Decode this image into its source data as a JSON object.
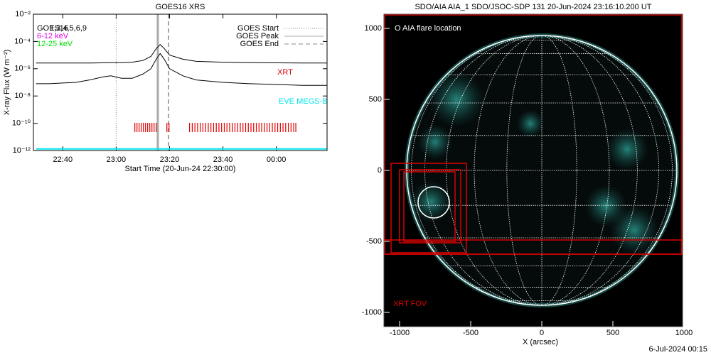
{
  "chart_data": [
    {
      "type": "log_line",
      "title": "GOES16 XRS",
      "xlabel": "Start Time (20-Jun-24 22:30:00)",
      "ylabel": "X-ray Flux (W m⁻²)",
      "xlim": [
        -1,
        109
      ],
      "xticks": [
        {
          "value": 10,
          "label": "22:40"
        },
        {
          "value": 30,
          "label": "23:00"
        },
        {
          "value": 50,
          "label": "23:20"
        },
        {
          "value": 70,
          "label": "23:40"
        },
        {
          "value": 90,
          "label": "00:00"
        }
      ],
      "ylim": [
        1e-12,
        0.01
      ],
      "yticks": [
        {
          "value": 0.01,
          "label": "10⁻²"
        },
        {
          "value": 0.0001,
          "label": "10⁻⁴"
        },
        {
          "value": 1e-06,
          "label": "10⁻⁶"
        },
        {
          "value": 1e-08,
          "label": "10⁻⁸"
        },
        {
          "value": 1e-10,
          "label": "10⁻¹⁰"
        },
        {
          "value": 1e-12,
          "label": "10⁻¹²"
        }
      ],
      "log_scale": true,
      "x": [
        0,
        5,
        10,
        15,
        20,
        25,
        28,
        32,
        36,
        40,
        43,
        45,
        46.5,
        48,
        50,
        55,
        60,
        70,
        80,
        90,
        100,
        109
      ],
      "series": [
        {
          "color": "#000000",
          "values": [
            2.6e-06,
            2.6e-06,
            2.6e-06,
            2.6e-06,
            2.6e-06,
            2.7e-06,
            2.8e-06,
            2.8e-06,
            3e-06,
            4e-06,
            8e-06,
            3e-05,
            6e-05,
            3e-05,
            1e-05,
            5e-06,
            3.5e-06,
            3e-06,
            2.8e-06,
            2.7e-06,
            2.6e-06,
            2.6e-06
          ]
        },
        {
          "color": "#000000",
          "values": [
            8e-08,
            8e-08,
            9e-08,
            1e-07,
            1.5e-07,
            2.5e-07,
            3e-07,
            2e-07,
            2e-07,
            4e-07,
            1e-06,
            5e-06,
            1.3e-05,
            5e-06,
            1e-06,
            3e-07,
            1.5e-07,
            1e-07,
            8e-08,
            7e-08,
            6e-08,
            6e-08
          ]
        },
        {
          "color": "#00e5ee",
          "values": [
            1.3e-12,
            1.3e-12,
            1.3e-12,
            1.3e-12,
            1.3e-12,
            1.3e-12,
            1.3e-12,
            1.3e-12,
            1.3e-12,
            1.3e-12,
            1.3e-12,
            1.3e-12,
            1.3e-12,
            1.3e-12,
            1.3e-12,
            1.3e-12,
            1.3e-12,
            1.3e-12,
            1.3e-12,
            1.3e-12,
            1.3e-12,
            1.3e-12
          ]
        }
      ],
      "channel_labels": [
        {
          "text": "GOES16",
          "color": "#000000"
        },
        {
          "text": "1,3,4,5,6,9",
          "color": "#000000"
        },
        {
          "text": "6-12 keV",
          "color": "#e000e0"
        },
        {
          "text": "12-25 keV",
          "color": "#00dd00"
        }
      ],
      "xrt_label": "XRT",
      "eve_label": "EVE MEGS-B",
      "goes_start": {
        "label": "GOES Start",
        "value": 30
      },
      "goes_peak": {
        "label": "GOES Peak",
        "value": 45.6
      },
      "goes_end": {
        "label": "GOES End",
        "value": 49.6
      },
      "xrt_color": "#dd0000",
      "xrt_times": [
        37,
        37.8,
        38.6,
        39.4,
        40.2,
        41,
        41.8,
        42.6,
        43.4,
        44.2,
        45,
        49,
        49.8,
        57.5,
        58.5,
        59.5,
        60.5,
        61.5,
        62.5,
        63.5,
        64.5,
        65.5,
        66.5,
        67.5,
        68.5,
        69.5,
        70.5,
        71.5,
        72.5,
        73.5,
        74.5,
        75.5,
        76.5,
        77.5,
        78.5,
        79.5,
        80.5,
        81.5,
        82.5,
        83.5,
        84.5,
        85.5,
        86.5,
        87.5,
        88.5,
        89.5,
        90.5,
        91.5,
        92.5,
        93.5,
        94.5,
        95.5,
        96.5,
        97.3
      ]
    },
    {
      "type": "solar_image",
      "title": "SDO/AIA AIA_1 SDO/JSOC-SDP 131 20-Jun-2024 23:16:10.200 UT",
      "xlabel": "X (arcsec)",
      "xlim": [
        -1110,
        990
      ],
      "xticks": [
        -1000,
        -500,
        0,
        500,
        1000
      ],
      "ylim": [
        -1100,
        1100
      ],
      "yticks": [
        -1000,
        -500,
        0,
        500,
        1000
      ],
      "solar_radius": 950,
      "flare_label": "O AIA flare location",
      "flare_location": [
        -760,
        -225
      ],
      "flare_radius": 110,
      "fov_label": "XRT FOV",
      "fov_color": "#dd0000",
      "fov_boxes": [
        [
          -1105,
          1095,
          985,
          -590
        ],
        [
          -1105,
          -490,
          985,
          -590
        ],
        [
          -1060,
          50,
          -530,
          -580
        ],
        [
          -1000,
          5,
          -570,
          -510
        ],
        [
          -970,
          -10,
          -610,
          -500
        ]
      ],
      "timestamp": "6-Jul-2024 00:15"
    }
  ]
}
